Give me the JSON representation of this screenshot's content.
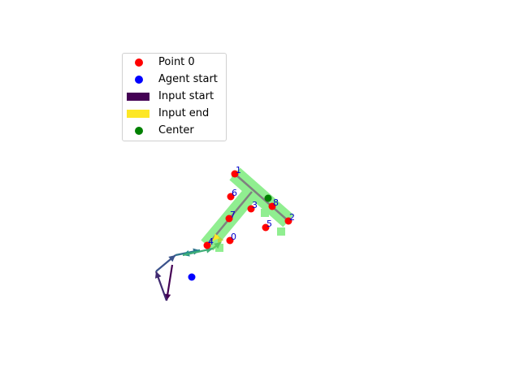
{
  "chart_data": {
    "type": "scatter",
    "title": "",
    "xlabel": "",
    "ylabel": "",
    "axes_visible": false,
    "xlim": [
      0,
      640
    ],
    "ylim": [
      480,
      0
    ],
    "legend": {
      "placement": "upper-left",
      "entries": [
        {
          "label": "Point 0",
          "kind": "dot",
          "color": "#ff0000"
        },
        {
          "label": "Agent start",
          "kind": "dot",
          "color": "#0000ff"
        },
        {
          "label": "Input start",
          "kind": "rect",
          "color": "#440154"
        },
        {
          "label": "Input end",
          "kind": "rect",
          "color": "#fde725"
        },
        {
          "label": "Center",
          "kind": "dot",
          "color": "#008000"
        }
      ]
    },
    "region_color": "#90ee90",
    "skeleton_color": "#808080",
    "point_color": "#ff0000",
    "label_color": "#0000cc",
    "points": [
      {
        "label": "0",
        "x": 283,
        "y": 296
      },
      {
        "label": "1",
        "x": 289,
        "y": 214
      },
      {
        "label": "2",
        "x": 355,
        "y": 272
      },
      {
        "label": "3",
        "x": 309,
        "y": 257
      },
      {
        "label": "4",
        "x": 255,
        "y": 302
      },
      {
        "label": "5",
        "x": 327,
        "y": 280
      },
      {
        "label": "6",
        "x": 284,
        "y": 242
      },
      {
        "label": "7",
        "x": 282,
        "y": 269
      },
      {
        "label": "8",
        "x": 335,
        "y": 254
      }
    ],
    "agent_start": {
      "x": 236,
      "y": 341
    },
    "center": {
      "x": 330,
      "y": 244
    },
    "skeleton": [
      [
        [
          289,
          214
        ],
        [
          355,
          272
        ]
      ],
      [
        [
          310,
          236
        ],
        [
          255,
          302
        ]
      ]
    ],
    "trajectory": [
      [
        212,
        326
      ],
      [
        205,
        370
      ],
      [
        192,
        334
      ],
      [
        216,
        314
      ],
      [
        246,
        308
      ],
      [
        225,
        314
      ],
      [
        262,
        306
      ],
      [
        272,
        298
      ],
      [
        268,
        290
      ],
      [
        262,
        296
      ]
    ],
    "trajectory_colormap": [
      "#440154",
      "#3b528b",
      "#21918c",
      "#5ec962",
      "#fde725"
    ]
  }
}
